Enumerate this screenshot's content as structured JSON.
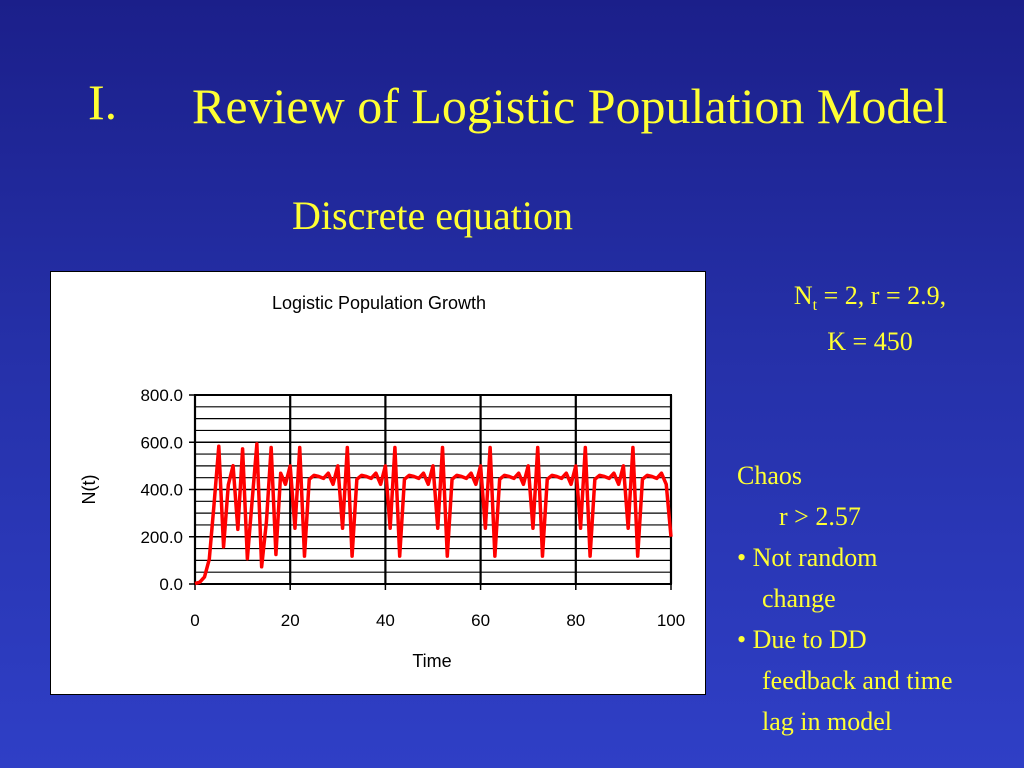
{
  "slide": {
    "title_number": "I.",
    "title": "Review of Logistic Population Model",
    "subtitle": "Discrete equation",
    "params_line1_n": "N",
    "params_line1_sub": "t",
    "params_line1_rest": " = 2, r = 2.9,",
    "params_line2": "K = 450",
    "notes": {
      "line1": "Chaos",
      "line2": "r > 2.57",
      "line3": "• Not random",
      "line4": "change",
      "line5": "• Due to DD",
      "line6": "feedback and time",
      "line7": "lag in model"
    }
  },
  "chart_data": {
    "type": "line",
    "title": "Logistic Population Growth",
    "xlabel": "Time",
    "ylabel": "N(t)",
    "xlim": [
      0,
      100
    ],
    "ylim": [
      0,
      800
    ],
    "x_ticks": [
      0,
      20,
      40,
      60,
      80,
      100
    ],
    "y_ticks": [
      "0.0",
      "200.0",
      "400.0",
      "600.0",
      "800.0"
    ],
    "x_tick_labels": [
      "0",
      "20",
      "40",
      "60",
      "80",
      "100"
    ],
    "grid": true,
    "line_color": "#ff0000",
    "series": [
      {
        "values": [
          2,
          7.8,
          30,
          105,
          337,
          583,
          157,
          420,
          501,
          231,
          572,
          107,
          352,
          593,
          73,
          262,
          578,
          125,
          469,
          422,
          500,
          236,
          578,
          118,
          443,
          460,
          455,
          447,
          469,
          422,
          500,
          236,
          578,
          118,
          443,
          460,
          455,
          447,
          469,
          422,
          500,
          236,
          578,
          118,
          443,
          460,
          455,
          447,
          469,
          422,
          500,
          236,
          578,
          118,
          443,
          460,
          455,
          447,
          469,
          422,
          500,
          236,
          578,
          118,
          443,
          460,
          455,
          447,
          469,
          422,
          500,
          236,
          578,
          118,
          443,
          460,
          455,
          447,
          469,
          422,
          500,
          236,
          578,
          118,
          443,
          460,
          455,
          447,
          469,
          422,
          500,
          236,
          578,
          118,
          443,
          460,
          455,
          447,
          469,
          422,
          200
        ]
      }
    ]
  }
}
